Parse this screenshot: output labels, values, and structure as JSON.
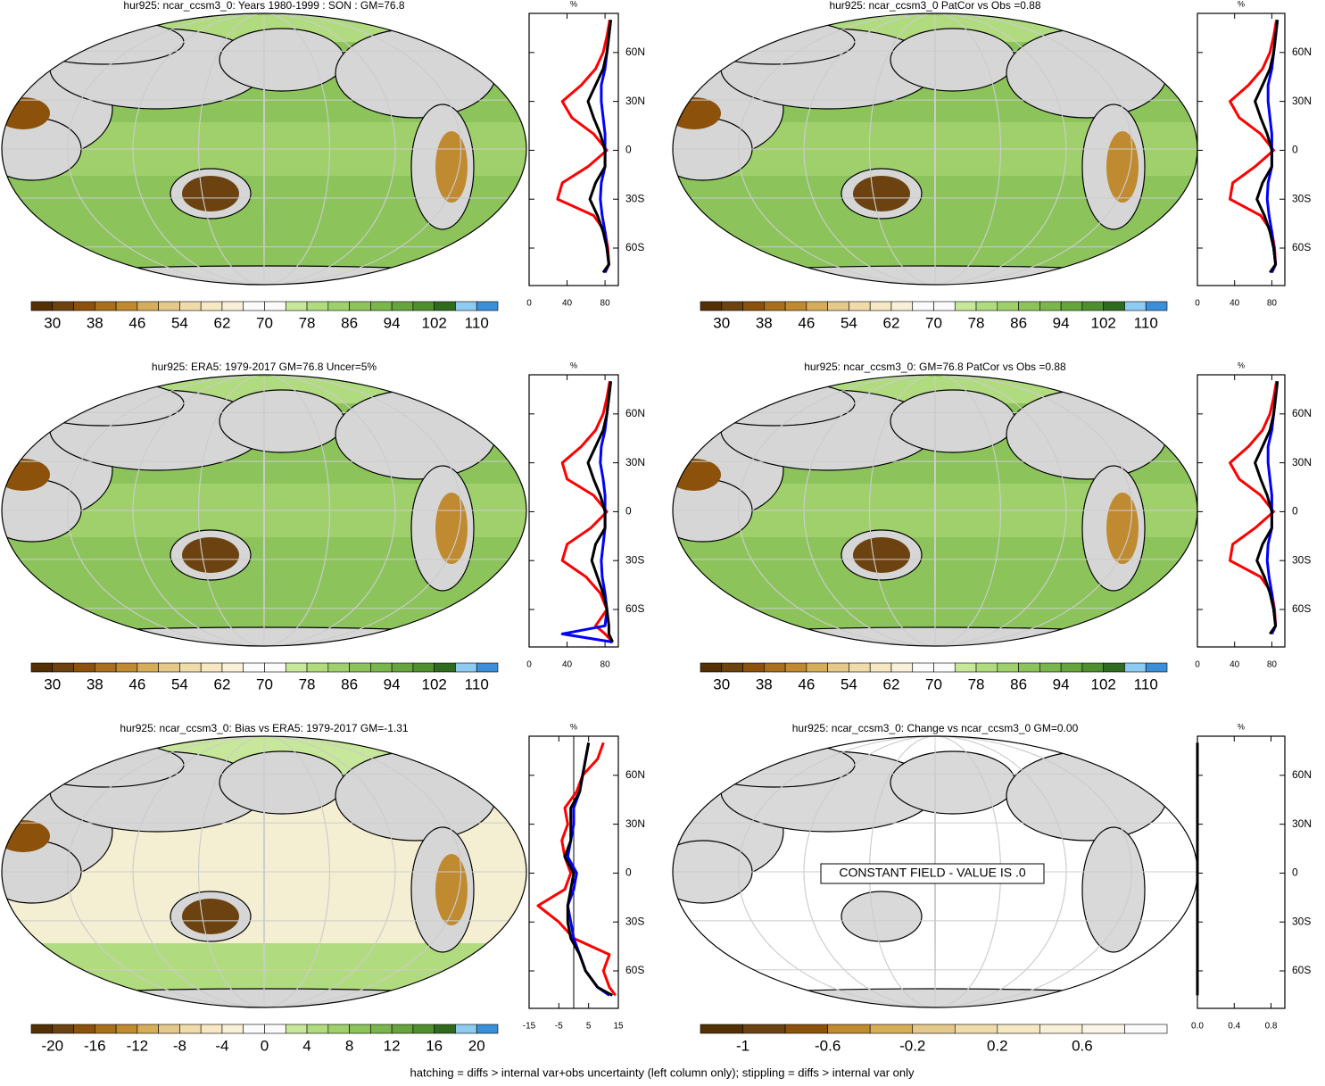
{
  "panels": [
    {
      "title": "hur925: ncar_ccsm3_0: Years 1980-1999 : SON : GM=76.8",
      "colorbar": {
        "labels": [
          30,
          38,
          46,
          54,
          62,
          70,
          78,
          86,
          94,
          102,
          110
        ],
        "colors": [
          "#543005",
          "#6b4210",
          "#8c510a",
          "#a8701d",
          "#bf8a30",
          "#d6ae5a",
          "#e4c98a",
          "#efdcaa",
          "#f6e8c3",
          "#f8f0d8",
          "#fbfbfb",
          "#fbfbfb",
          "#c7e89a",
          "#b0dc7f",
          "#9fd06c",
          "#8cc45b",
          "#7ab64c",
          "#66a53c",
          "#4f8f2e",
          "#2f6b1e",
          "#8ecbf0",
          "#3a8fd8"
        ]
      },
      "profile": {
        "unit": "%",
        "xlim": [
          0,
          94
        ],
        "xticks": [
          0,
          40,
          80
        ],
        "ylim": [
          -83,
          84
        ],
        "yticks": [
          {
            "value": 60,
            "label": "60N"
          },
          {
            "value": 30,
            "label": "30N"
          },
          0,
          {
            "value": -30,
            "label": "30S"
          },
          {
            "value": -60,
            "label": "60S"
          }
        ],
        "lat": [
          -75,
          -70,
          -60,
          -50,
          -40,
          -30,
          -20,
          -10,
          0,
          10,
          20,
          30,
          40,
          50,
          60,
          70,
          80
        ],
        "series": [
          {
            "color": "#ff0000",
            "values": [
              80,
              84,
              83,
              80,
              68,
              30,
              35,
              62,
              82,
              68,
              45,
              35,
              55,
              70,
              78,
              82,
              85
            ]
          },
          {
            "color": "#0000ff",
            "values": [
              80,
              84,
              82,
              80,
              77,
              75,
              76,
              80,
              80,
              80,
              78,
              76,
              76,
              80,
              82,
              84,
              86
            ]
          },
          {
            "color": "#000000",
            "values": [
              78,
              84,
              82,
              78,
              72,
              64,
              70,
              80,
              80,
              75,
              68,
              62,
              70,
              78,
              82,
              84,
              86
            ]
          }
        ]
      }
    },
    {
      "title": "hur925: ncar_ccsm3_0 PatCor vs Obs =0.88",
      "colorbar": {
        "labels": [
          30,
          38,
          46,
          54,
          62,
          70,
          78,
          86,
          94,
          102,
          110
        ],
        "colors": [
          "#543005",
          "#6b4210",
          "#8c510a",
          "#a8701d",
          "#bf8a30",
          "#d6ae5a",
          "#e4c98a",
          "#efdcaa",
          "#f6e8c3",
          "#f8f0d8",
          "#fbfbfb",
          "#fbfbfb",
          "#c7e89a",
          "#b0dc7f",
          "#9fd06c",
          "#8cc45b",
          "#7ab64c",
          "#66a53c",
          "#4f8f2e",
          "#2f6b1e",
          "#8ecbf0",
          "#3a8fd8"
        ]
      },
      "profile": {
        "unit": "%",
        "xlim": [
          0,
          94
        ],
        "xticks": [
          0,
          40,
          80
        ],
        "ylim": [
          -83,
          84
        ],
        "yticks": [
          {
            "value": 60,
            "label": "60N"
          },
          {
            "value": 30,
            "label": "30N"
          },
          0,
          {
            "value": -30,
            "label": "30S"
          },
          {
            "value": -60,
            "label": "60S"
          }
        ],
        "lat": [
          -75,
          -70,
          -60,
          -50,
          -40,
          -30,
          -20,
          -10,
          0,
          10,
          20,
          30,
          40,
          50,
          60,
          70,
          80
        ],
        "series": [
          {
            "color": "#ff0000",
            "values": [
              80,
              84,
              83,
              80,
              68,
              35,
              38,
              62,
              82,
              68,
              45,
              35,
              55,
              70,
              78,
              82,
              85
            ]
          },
          {
            "color": "#0000ff",
            "values": [
              80,
              84,
              82,
              80,
              77,
              75,
              76,
              80,
              80,
              80,
              78,
              76,
              76,
              80,
              82,
              84,
              86
            ]
          },
          {
            "color": "#000000",
            "values": [
              78,
              84,
              82,
              78,
              72,
              64,
              70,
              80,
              80,
              75,
              68,
              62,
              70,
              78,
              82,
              84,
              86
            ]
          }
        ]
      }
    },
    {
      "title": "hur925: ERA5: 1979-2017 GM=76.8 Uncer=5%",
      "colorbar": {
        "labels": [
          30,
          38,
          46,
          54,
          62,
          70,
          78,
          86,
          94,
          102,
          110
        ],
        "colors": [
          "#543005",
          "#6b4210",
          "#8c510a",
          "#a8701d",
          "#bf8a30",
          "#d6ae5a",
          "#e4c98a",
          "#efdcaa",
          "#f6e8c3",
          "#f8f0d8",
          "#fbfbfb",
          "#fbfbfb",
          "#c7e89a",
          "#b0dc7f",
          "#9fd06c",
          "#8cc45b",
          "#7ab64c",
          "#66a53c",
          "#4f8f2e",
          "#2f6b1e",
          "#8ecbf0",
          "#3a8fd8"
        ]
      },
      "profile": {
        "unit": "%",
        "xlim": [
          0,
          94
        ],
        "xticks": [
          0,
          40,
          80
        ],
        "ylim": [
          -83,
          84
        ],
        "yticks": [
          {
            "value": 60,
            "label": "60N"
          },
          {
            "value": 30,
            "label": "30N"
          },
          0,
          {
            "value": -30,
            "label": "30S"
          },
          {
            "value": -60,
            "label": "60S"
          }
        ],
        "lat": [
          -80,
          -75,
          -70,
          -60,
          -50,
          -40,
          -30,
          -20,
          -10,
          0,
          10,
          20,
          30,
          40,
          50,
          60,
          70,
          80
        ],
        "series": [
          {
            "color": "#ff0000",
            "values": [
              88,
              80,
              70,
              82,
              75,
              60,
              35,
              40,
              65,
              82,
              68,
              40,
              35,
              55,
              70,
              78,
              82,
              85
            ]
          },
          {
            "color": "#0000ff",
            "values": [
              88,
              35,
              80,
              82,
              80,
              77,
              76,
              78,
              80,
              80,
              80,
              78,
              75,
              76,
              80,
              82,
              84,
              86
            ]
          },
          {
            "color": "#000000",
            "values": [
              88,
              84,
              84,
              82,
              78,
              72,
              66,
              70,
              80,
              80,
              75,
              68,
              62,
              70,
              78,
              82,
              84,
              86
            ]
          }
        ]
      }
    },
    {
      "title": "hur925: ncar_ccsm3_0: GM=76.8 PatCor vs Obs =0.88",
      "colorbar": {
        "labels": [
          30,
          38,
          46,
          54,
          62,
          70,
          78,
          86,
          94,
          102,
          110
        ],
        "colors": [
          "#543005",
          "#6b4210",
          "#8c510a",
          "#a8701d",
          "#bf8a30",
          "#d6ae5a",
          "#e4c98a",
          "#efdcaa",
          "#f6e8c3",
          "#f8f0d8",
          "#fbfbfb",
          "#fbfbfb",
          "#c7e89a",
          "#b0dc7f",
          "#9fd06c",
          "#8cc45b",
          "#7ab64c",
          "#66a53c",
          "#4f8f2e",
          "#2f6b1e",
          "#8ecbf0",
          "#3a8fd8"
        ]
      },
      "profile": {
        "unit": "%",
        "xlim": [
          0,
          94
        ],
        "xticks": [
          0,
          40,
          80
        ],
        "ylim": [
          -83,
          84
        ],
        "yticks": [
          {
            "value": 60,
            "label": "60N"
          },
          {
            "value": 30,
            "label": "30N"
          },
          0,
          {
            "value": -30,
            "label": "30S"
          },
          {
            "value": -60,
            "label": "60S"
          }
        ],
        "lat": [
          -75,
          -70,
          -60,
          -50,
          -40,
          -30,
          -20,
          -10,
          0,
          10,
          20,
          30,
          40,
          50,
          60,
          70,
          80
        ],
        "series": [
          {
            "color": "#ff0000",
            "values": [
              80,
              84,
              83,
              80,
              68,
              35,
              38,
              62,
              82,
              68,
              45,
              35,
              55,
              70,
              78,
              82,
              85
            ]
          },
          {
            "color": "#0000ff",
            "values": [
              80,
              84,
              82,
              80,
              77,
              75,
              76,
              80,
              80,
              80,
              78,
              76,
              76,
              80,
              82,
              84,
              86
            ]
          },
          {
            "color": "#000000",
            "values": [
              78,
              84,
              82,
              78,
              72,
              64,
              70,
              80,
              80,
              75,
              68,
              62,
              70,
              78,
              82,
              84,
              86
            ]
          }
        ]
      }
    },
    {
      "title": "hur925: ncar_ccsm3_0: Bias vs ERA5: 1979-2017  GM=-1.31",
      "colorbar": {
        "labels": [
          -20,
          -16,
          -12,
          -8,
          -4,
          0,
          4,
          8,
          12,
          16,
          20
        ],
        "colors": [
          "#543005",
          "#6b4210",
          "#8c510a",
          "#a8701d",
          "#bf8a30",
          "#d6ae5a",
          "#e4c98a",
          "#efdcaa",
          "#f6e8c3",
          "#f8f0d8",
          "#fbfbfb",
          "#fbfbfb",
          "#c7e89a",
          "#b0dc7f",
          "#9fd06c",
          "#8cc45b",
          "#7ab64c",
          "#66a53c",
          "#4f8f2e",
          "#2f6b1e",
          "#8ecbf0",
          "#3a8fd8"
        ]
      },
      "profile": {
        "unit": "%",
        "xlim": [
          -15,
          15
        ],
        "xticks": [
          -15,
          -5,
          5,
          15
        ],
        "ylim": [
          -83,
          84
        ],
        "yticks": [
          {
            "value": 60,
            "label": "60N"
          },
          {
            "value": 30,
            "label": "30N"
          },
          0,
          {
            "value": -30,
            "label": "30S"
          },
          {
            "value": -60,
            "label": "60S"
          }
        ],
        "lat": [
          -75,
          -70,
          -60,
          -50,
          -40,
          -30,
          -20,
          -10,
          0,
          10,
          20,
          30,
          40,
          50,
          60,
          70,
          80
        ],
        "series": [
          {
            "color": "#ff0000",
            "values": [
              14,
              12,
              10,
              12,
              0,
              -5,
              -12,
              -3,
              -1,
              -3,
              -4,
              -2,
              -3,
              1,
              3,
              8,
              10
            ]
          },
          {
            "color": "#0000ff",
            "values": [
              12,
              8,
              4,
              2,
              0,
              -1,
              -2,
              0,
              1,
              -2,
              -1,
              0,
              0,
              2,
              3,
              4,
              5
            ]
          },
          {
            "color": "#000000",
            "values": [
              13,
              8,
              4,
              2,
              -1,
              -2,
              -2,
              -1,
              0,
              -3,
              -1,
              -1,
              -1,
              2,
              3,
              4,
              5
            ]
          }
        ]
      }
    },
    {
      "title": "hur925: ncar_ccsm3_0: Change vs ncar_ccsm3_0 GM=0.00",
      "annotation": "CONSTANT FIELD - VALUE IS .0",
      "colorbar": {
        "labels": [
          -1,
          -0.6,
          -0.2,
          0.2,
          0.6
        ],
        "colors": [
          "#543005",
          "#6b4210",
          "#8c510a",
          "#bf8a30",
          "#d6ae5a",
          "#e4c98a",
          "#efdcaa",
          "#f6e8c3",
          "#f8f0d8",
          "#faf5e8",
          "#fbfbfb"
        ]
      },
      "profile": {
        "unit": "%",
        "xlim": [
          0,
          0.95
        ],
        "xticks": [
          {
            "value": 0,
            "label": "0.0"
          },
          0.4,
          0.8
        ],
        "ylim": [
          -83,
          84
        ],
        "yticks": [
          {
            "value": 60,
            "label": "60N"
          },
          {
            "value": 30,
            "label": "30N"
          },
          0,
          {
            "value": -30,
            "label": "30S"
          },
          {
            "value": -60,
            "label": "60S"
          }
        ],
        "lat": [
          -75,
          -60,
          -30,
          0,
          30,
          60,
          80
        ],
        "series": [
          {
            "color": "#000000",
            "values": [
              0,
              0,
              0,
              0,
              0,
              0,
              0
            ]
          }
        ]
      }
    }
  ],
  "footer": "hatching = diffs > internal var+obs uncertainty (left column only); stippling = diffs > internal var only"
}
